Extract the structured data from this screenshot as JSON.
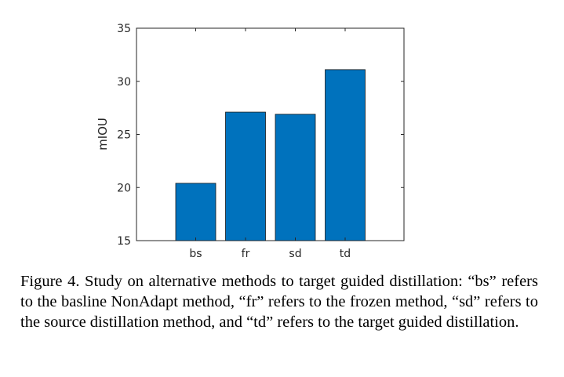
{
  "chart_data": {
    "type": "bar",
    "categories": [
      "bs",
      "fr",
      "sd",
      "td"
    ],
    "values": [
      20.4,
      27.1,
      26.9,
      31.1
    ],
    "ylabel": "mIOU",
    "ylim": [
      15,
      35
    ],
    "yticks": [
      "15",
      "20",
      "25",
      "30",
      "35"
    ],
    "grid": false,
    "bar_color": "#0072BD"
  },
  "caption": "Figure 4. Study on alternative methods to target guided distillation: “bs” refers to the basline NonAdapt method, “fr” refers to the frozen method, “sd” refers to the source distillation method, and “td” refers to the target guided distillation."
}
